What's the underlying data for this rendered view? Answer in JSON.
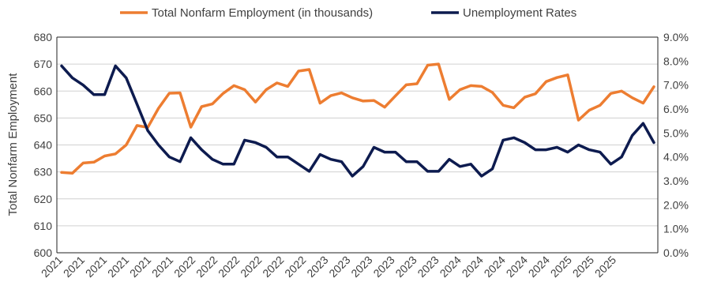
{
  "chart_data": {
    "type": "line",
    "ylabel": "Total Nonfarm Employment",
    "y_left_lim": [
      600,
      680
    ],
    "y_left_ticks": [
      "600",
      "610",
      "620",
      "630",
      "640",
      "650",
      "660",
      "670",
      "680"
    ],
    "y_right_lim": [
      0,
      9
    ],
    "y_right_ticks": [
      "0.0%",
      "1.0%",
      "2.0%",
      "3.0%",
      "4.0%",
      "5.0%",
      "6.0%",
      "7.0%",
      "8.0%",
      "9.0%"
    ],
    "x_tick_labels": [
      "2021",
      "2021",
      "2021",
      "2021",
      "2021",
      "2021",
      "2022",
      "2022",
      "2022",
      "2022",
      "2022",
      "2022",
      "2023",
      "2023",
      "2023",
      "2023",
      "2023",
      "2023",
      "2024",
      "2024",
      "2024",
      "2024",
      "2024",
      "2025",
      "2025",
      "2025"
    ],
    "grid": "horizontal",
    "legend_position": "top",
    "series": [
      {
        "name": "Total Nonfarm Employment (in thousands)",
        "axis": "left",
        "color": "#ED7D31",
        "values": [
          629.8,
          629.5,
          633.3,
          633.6,
          635.9,
          636.7,
          640.0,
          647.2,
          646.5,
          653.6,
          659.2,
          659.3,
          646.6,
          654.2,
          655.2,
          659.1,
          662.0,
          660.5,
          655.9,
          660.5,
          663.0,
          661.7,
          667.4,
          668.0,
          655.5,
          658.3,
          659.3,
          657.5,
          656.3,
          656.5,
          654.0,
          658.2,
          662.3,
          662.7,
          669.6,
          670.0,
          656.9,
          660.5,
          662.0,
          661.7,
          659.5,
          654.7,
          653.8,
          657.7,
          659.0,
          663.5,
          665.0,
          666.0,
          649.2,
          652.9,
          654.7,
          659.1,
          660.0,
          657.5,
          655.5,
          661.6
        ]
      },
      {
        "name": "Unemployment Rates",
        "axis": "right",
        "color": "#0D1B4F",
        "values": [
          7.8,
          7.3,
          7.0,
          6.6,
          6.6,
          7.8,
          7.3,
          6.2,
          5.1,
          4.5,
          4.0,
          3.8,
          4.8,
          4.3,
          3.9,
          3.7,
          3.7,
          4.7,
          4.6,
          4.4,
          4.0,
          4.0,
          3.7,
          3.4,
          4.1,
          3.9,
          3.8,
          3.2,
          3.6,
          4.4,
          4.2,
          4.2,
          3.8,
          3.8,
          3.4,
          3.4,
          3.9,
          3.6,
          3.7,
          3.2,
          3.5,
          4.7,
          4.8,
          4.6,
          4.3,
          4.3,
          4.4,
          4.2,
          4.5,
          4.3,
          4.2,
          3.7,
          4.0,
          4.9,
          5.4,
          4.6
        ]
      }
    ]
  }
}
